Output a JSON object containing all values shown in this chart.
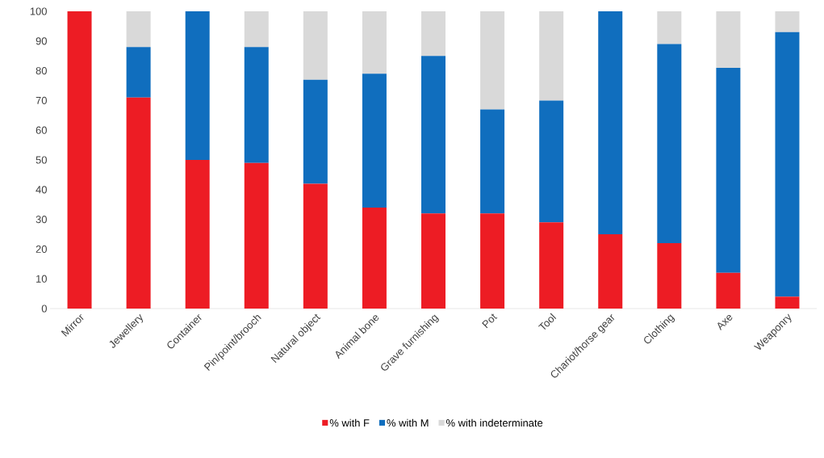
{
  "chart_data": {
    "type": "bar",
    "stacked": true,
    "categories": [
      "Mirror",
      "Jewellery",
      "Container",
      "Pin/point/brooch",
      "Natural object",
      "Animal bone",
      "Grave furnishing",
      "Pot",
      "Tool",
      "Chariot/horse gear",
      "Clothing",
      "Axe",
      "Weaponry"
    ],
    "series": [
      {
        "name": "% with F",
        "color": "#ed1c24",
        "values": [
          100,
          71,
          50,
          49,
          42,
          34,
          32,
          32,
          29,
          25,
          22,
          12,
          4
        ]
      },
      {
        "name": "% with M",
        "color": "#106ebe",
        "values": [
          0,
          17,
          50,
          39,
          35,
          45,
          53,
          35,
          41,
          75,
          67,
          69,
          89
        ]
      },
      {
        "name": "% with indeterminate",
        "color": "#d9d9d9",
        "values": [
          0,
          12,
          0,
          12,
          23,
          21,
          15,
          33,
          30,
          0,
          11,
          19,
          7
        ]
      }
    ],
    "ylim": [
      0,
      100
    ],
    "yticks": [
      0,
      10,
      20,
      30,
      40,
      50,
      60,
      70,
      80,
      90,
      100
    ],
    "grid": false,
    "legend": "bottom"
  }
}
